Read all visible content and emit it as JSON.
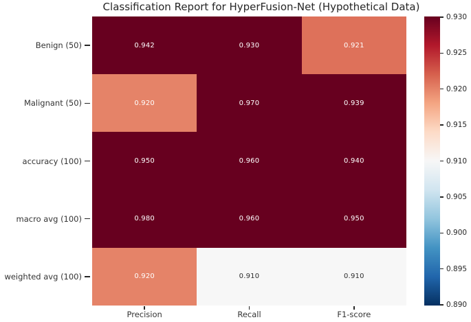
{
  "title": "Classification Report for HyperFusion-Net (Hypothetical Data)",
  "chart_data": {
    "type": "heatmap",
    "title": "Classification Report for HyperFusion-Net (Hypothetical Data)",
    "rows": [
      "Benign (50)",
      "Malignant (50)",
      "accuracy (100)",
      "macro avg (100)",
      "weighted avg (100)"
    ],
    "columns": [
      "Precision",
      "Recall",
      "F1-score"
    ],
    "values": [
      [
        0.942,
        0.93,
        0.921
      ],
      [
        0.92,
        0.97,
        0.939
      ],
      [
        0.95,
        0.96,
        0.94
      ],
      [
        0.98,
        0.96,
        0.95
      ],
      [
        0.92,
        0.91,
        0.91
      ]
    ],
    "value_decimals": 3,
    "vmin": 0.89,
    "vmax": 0.93,
    "colormap": "RdBu_r",
    "colormap_stops_low_to_high": [
      "#053061",
      "#2166ac",
      "#4393c3",
      "#92c5de",
      "#d1e5f0",
      "#f7f7f7",
      "#fddbc7",
      "#f4a582",
      "#d6604d",
      "#b2182b",
      "#67001f"
    ],
    "colorbar_ticks": [
      "0.930",
      "0.925",
      "0.920",
      "0.915",
      "0.910",
      "0.905",
      "0.900",
      "0.895",
      "0.890"
    ],
    "legend_position": "right-colorbar",
    "grid": false,
    "annot_text_light": "#ffffff",
    "annot_text_dark": "#2b2b2b",
    "tick_label_color": "#333333",
    "title_color": "#262626"
  }
}
